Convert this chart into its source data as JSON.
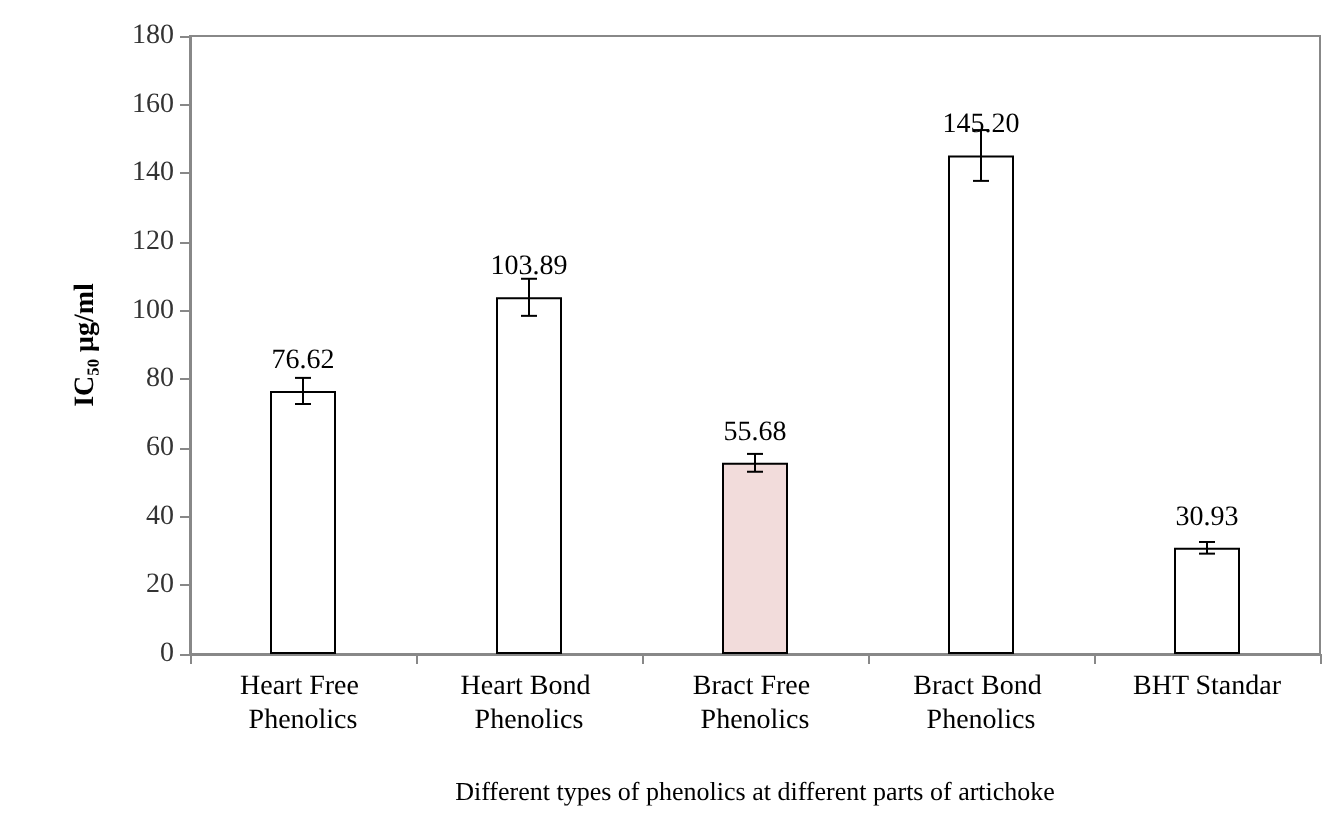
{
  "chart_data": {
    "type": "bar",
    "categories": [
      "Heart Free Phenolics",
      "Heart Bond Phenolics",
      "Bract Free Phenolics",
      "Bract Bond Phenolics",
      "BHT Standar"
    ],
    "values": [
      76.62,
      103.89,
      55.68,
      145.2,
      30.93
    ],
    "value_labels": [
      "76.62",
      "103.89",
      "55.68",
      "145.20",
      "30.93"
    ],
    "errors": [
      3.8,
      5.4,
      2.6,
      7.4,
      1.7
    ],
    "colors": [
      "#ffffff",
      "#ffffff",
      "#f2dcdb",
      "#ffffff",
      "#ffffff"
    ],
    "xlabel": "Different types of phenolics at different parts of artichoke",
    "ylabel": "IC₅₀ μg/ml",
    "ylim": [
      0,
      180
    ],
    "yticks": [
      0,
      20,
      40,
      60,
      80,
      100,
      120,
      140,
      160,
      180
    ],
    "grid": false
  }
}
